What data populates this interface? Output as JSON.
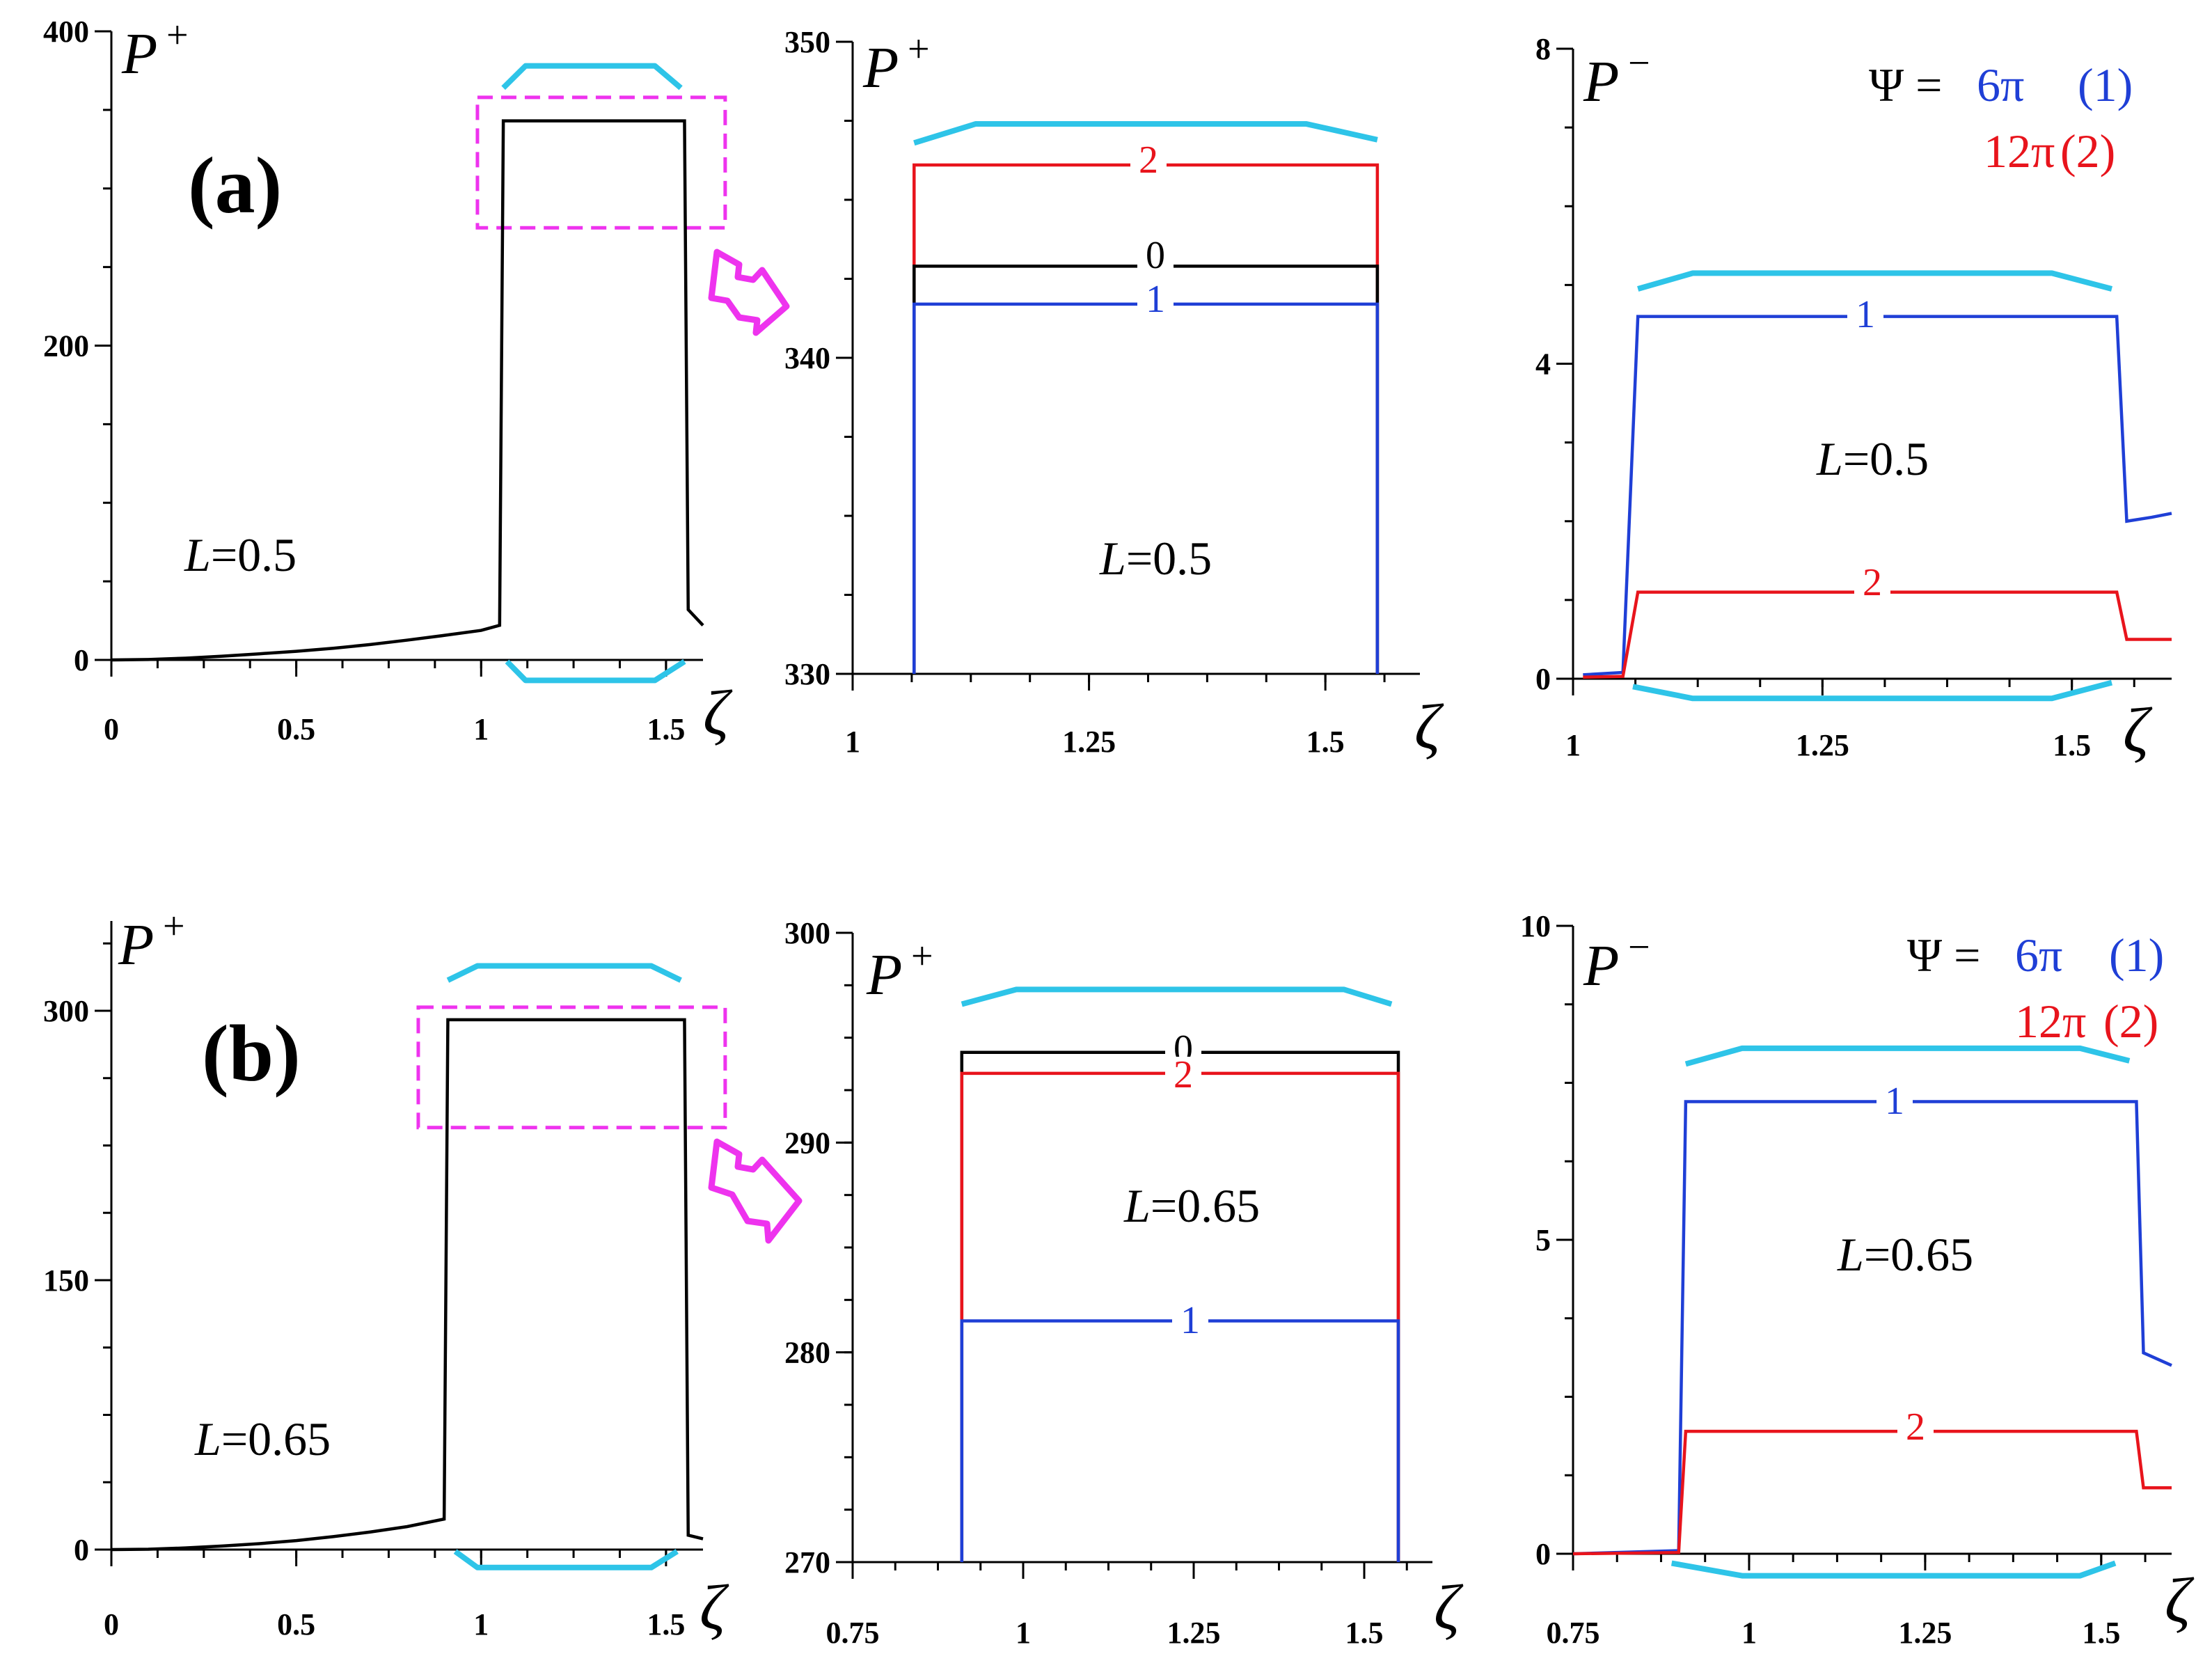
{
  "colors": {
    "black": "#000000",
    "blue": "#1f3fd6",
    "red": "#e8141c",
    "cyan": "#2ec4e8",
    "magenta": "#ee33ee"
  },
  "figure_letters": [
    "(a)",
    "(b)"
  ],
  "chart_data": [
    {
      "type": "line",
      "title": "(a)",
      "ylabel": "P",
      "ylabel_sup": "+",
      "xlabel": "ζ",
      "annotation": "L=0.5",
      "xlim": [
        0,
        1.6
      ],
      "ylim": [
        0,
        400
      ],
      "xticks": [
        0,
        0.5,
        1,
        1.5
      ],
      "xtick_labels": [
        "0",
        "0.5",
        "1",
        "1.5"
      ],
      "yticks": [
        0,
        200,
        400
      ],
      "ytick_labels": [
        "0",
        "200",
        "400"
      ],
      "series": [
        {
          "name": "0",
          "color": "black",
          "x": [
            0,
            0.1,
            0.2,
            0.3,
            0.4,
            0.5,
            0.6,
            0.7,
            0.8,
            0.9,
            1.0,
            1.05,
            1.06,
            1.55,
            1.56,
            1.6
          ],
          "y": [
            0,
            0.3,
            1.1,
            2.4,
            3.9,
            5.5,
            7.4,
            9.8,
            12.6,
            15.6,
            18.8,
            22,
            343,
            343,
            32,
            22
          ]
        }
      ],
      "cyan_brackets": [
        {
          "position": "top",
          "x": [
            1.06,
            1.12,
            1.47,
            1.54
          ],
          "y": [
            364,
            378,
            378,
            364
          ]
        },
        {
          "position": "bottom",
          "x": [
            1.07,
            1.12,
            1.47,
            1.55
          ],
          "y": [
            -1,
            -13,
            -13,
            -1
          ]
        }
      ],
      "zoom_box": {
        "x": [
          0.99,
          1.66
        ],
        "y": [
          275,
          358
        ]
      }
    },
    {
      "type": "line",
      "ylabel": "P",
      "ylabel_sup": "+",
      "xlabel": "ζ",
      "annotation": "L=0.5",
      "xlim": [
        1,
        1.6
      ],
      "ylim": [
        330,
        350
      ],
      "xticks": [
        1,
        1.25,
        1.5
      ],
      "xtick_labels": [
        "1",
        "1.25",
        "1.5"
      ],
      "yticks": [
        330,
        340,
        350
      ],
      "ytick_labels": [
        "330",
        "340",
        "350"
      ],
      "series": [
        {
          "name": "2",
          "color": "red",
          "x": [
            1.065,
            1.065,
            1.555,
            1.555
          ],
          "y": [
            330,
            346.1,
            346.1,
            330
          ]
        },
        {
          "name": "0",
          "color": "black",
          "x": [
            1.065,
            1.065,
            1.555,
            1.555
          ],
          "y": [
            330,
            342.9,
            342.9,
            330
          ]
        },
        {
          "name": "1",
          "color": "blue",
          "x": [
            1.065,
            1.065,
            1.555,
            1.555
          ],
          "y": [
            330,
            341.7,
            341.7,
            330
          ]
        }
      ],
      "cyan_brackets": [
        {
          "position": "top",
          "x": [
            1.065,
            1.13,
            1.48,
            1.555
          ],
          "y": [
            346.8,
            347.4,
            347.4,
            346.9
          ]
        }
      ]
    },
    {
      "type": "line",
      "ylabel": "P",
      "ylabel_sup": "−",
      "xlabel": "ζ",
      "annotation": "L=0.5",
      "xlim": [
        1,
        1.6
      ],
      "ylim": [
        0,
        8
      ],
      "xticks": [
        1,
        1.25,
        1.5
      ],
      "xtick_labels": [
        "1",
        "1.25",
        "1.5"
      ],
      "yticks": [
        0,
        4,
        8
      ],
      "ytick_labels": [
        "0",
        "4",
        "8"
      ],
      "legend": {
        "psi": "Ψ =",
        "entries": [
          {
            "value": "6π",
            "tag": "(1)",
            "color": "blue"
          },
          {
            "value": "12π",
            "tag": "(2)",
            "color": "red"
          }
        ]
      },
      "series": [
        {
          "name": "1",
          "color": "blue",
          "x": [
            1.01,
            1.05,
            1.065,
            1.545,
            1.555,
            1.58,
            1.6
          ],
          "y": [
            0.05,
            0.08,
            4.6,
            4.6,
            2.0,
            2.05,
            2.1
          ]
        },
        {
          "name": "2",
          "color": "red",
          "x": [
            1.01,
            1.05,
            1.065,
            1.545,
            1.555,
            1.58,
            1.6
          ],
          "y": [
            0.02,
            0.03,
            1.1,
            1.1,
            0.5,
            0.5,
            0.5
          ]
        }
      ],
      "cyan_brackets": [
        {
          "position": "top",
          "x": [
            1.065,
            1.12,
            1.48,
            1.54
          ],
          "y": [
            4.95,
            5.15,
            5.15,
            4.95
          ]
        },
        {
          "position": "bottom",
          "x": [
            1.06,
            1.12,
            1.48,
            1.54
          ],
          "y": [
            -0.1,
            -0.25,
            -0.25,
            -0.05
          ]
        }
      ]
    },
    {
      "type": "line",
      "title": "(b)",
      "ylabel": "P",
      "ylabel_sup": "+",
      "xlabel": "ζ",
      "annotation": "L=0.65",
      "xlim": [
        0,
        1.6
      ],
      "ylim": [
        0,
        350
      ],
      "xticks": [
        0,
        0.5,
        1,
        1.5
      ],
      "xtick_labels": [
        "0",
        "0.5",
        "1",
        "1.5"
      ],
      "yticks": [
        0,
        150,
        300
      ],
      "ytick_labels": [
        "0",
        "150",
        "300"
      ],
      "series": [
        {
          "name": "0",
          "color": "black",
          "x": [
            0,
            0.1,
            0.2,
            0.3,
            0.4,
            0.5,
            0.6,
            0.7,
            0.8,
            0.9,
            0.91,
            1.55,
            1.56,
            1.6
          ],
          "y": [
            0,
            0.2,
            0.9,
            2,
            3.3,
            5,
            7.2,
            9.8,
            12.8,
            17,
            295,
            295,
            8,
            6
          ]
        }
      ],
      "cyan_brackets": [
        {
          "position": "top",
          "x": [
            0.91,
            0.99,
            1.46,
            1.54
          ],
          "y": [
            317,
            325,
            325,
            317
          ]
        },
        {
          "position": "bottom",
          "x": [
            0.93,
            0.99,
            1.46,
            1.53
          ],
          "y": [
            -1,
            -10,
            -10,
            -1
          ]
        }
      ],
      "zoom_box": {
        "x": [
          0.83,
          1.66
        ],
        "y": [
          235,
          302
        ]
      }
    },
    {
      "type": "line",
      "ylabel": "P",
      "ylabel_sup": "+",
      "xlabel": "ζ",
      "annotation": "L=0.65",
      "xlim": [
        0.75,
        1.6
      ],
      "ylim": [
        270,
        300
      ],
      "xticks": [
        0.75,
        1,
        1.25,
        1.5
      ],
      "xtick_labels": [
        "0.75",
        "1",
        "1.25",
        "1.5"
      ],
      "yticks": [
        270,
        280,
        290,
        300
      ],
      "ytick_labels": [
        "270",
        "280",
        "290",
        "300"
      ],
      "series": [
        {
          "name": "0",
          "color": "black",
          "x": [
            0.91,
            0.91,
            1.55,
            1.55
          ],
          "y": [
            270,
            294.3,
            294.3,
            270
          ]
        },
        {
          "name": "2",
          "color": "red",
          "x": [
            0.91,
            0.91,
            1.55,
            1.55
          ],
          "y": [
            270,
            293.3,
            293.3,
            270
          ]
        },
        {
          "name": "1",
          "color": "blue",
          "x": [
            0.91,
            0.91,
            1.55,
            1.55
          ],
          "y": [
            270,
            281.5,
            281.5,
            270
          ]
        }
      ],
      "cyan_brackets": [
        {
          "position": "top",
          "x": [
            0.91,
            0.99,
            1.47,
            1.54
          ],
          "y": [
            296.6,
            297.3,
            297.3,
            296.6
          ]
        }
      ]
    },
    {
      "type": "line",
      "ylabel": "P",
      "ylabel_sup": "−",
      "xlabel": "ζ",
      "annotation": "L=0.65",
      "xlim": [
        0.75,
        1.6
      ],
      "ylim": [
        0,
        10
      ],
      "xticks": [
        0.75,
        1,
        1.25,
        1.5
      ],
      "xtick_labels": [
        "0.75",
        "1",
        "1.25",
        "1.5"
      ],
      "yticks": [
        0,
        5,
        10
      ],
      "ytick_labels": [
        "0",
        "5",
        "10"
      ],
      "legend": {
        "psi": "Ψ =",
        "entries": [
          {
            "value": "6π",
            "tag": "(1)",
            "color": "blue"
          },
          {
            "value": "12π",
            "tag": "(2)",
            "color": "red"
          }
        ]
      },
      "series": [
        {
          "name": "1",
          "color": "blue",
          "x": [
            0.75,
            0.9,
            0.91,
            1.55,
            1.56,
            1.6
          ],
          "y": [
            0,
            0.05,
            7.2,
            7.2,
            3.2,
            3.0
          ]
        },
        {
          "name": "2",
          "color": "red",
          "x": [
            0.75,
            0.9,
            0.91,
            1.55,
            1.56,
            1.6
          ],
          "y": [
            0,
            0.02,
            1.95,
            1.95,
            1.05,
            1.05
          ]
        }
      ],
      "cyan_brackets": [
        {
          "position": "top",
          "x": [
            0.91,
            0.99,
            1.47,
            1.54
          ],
          "y": [
            7.8,
            8.05,
            8.05,
            7.85
          ]
        },
        {
          "position": "bottom",
          "x": [
            0.89,
            0.99,
            1.47,
            1.52
          ],
          "y": [
            -0.15,
            -0.35,
            -0.35,
            -0.15
          ]
        }
      ]
    }
  ]
}
